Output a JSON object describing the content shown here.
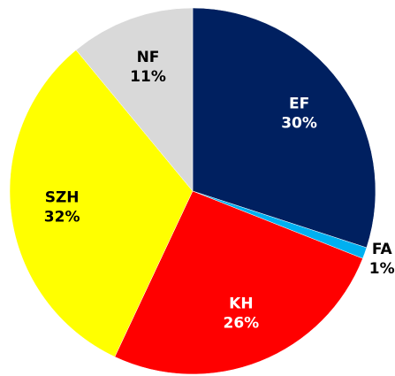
{
  "chart_data": {
    "type": "pie",
    "categories": [
      "EF",
      "FA",
      "KH",
      "SZH",
      "NF"
    ],
    "values": [
      30,
      1,
      26,
      32,
      11
    ],
    "value_labels": [
      "30%",
      "1%",
      "26%",
      "32%",
      "11%"
    ],
    "colors": [
      "#002060",
      "#00b0f0",
      "#ff0000",
      "#ffff00",
      "#d9d9d9"
    ]
  }
}
